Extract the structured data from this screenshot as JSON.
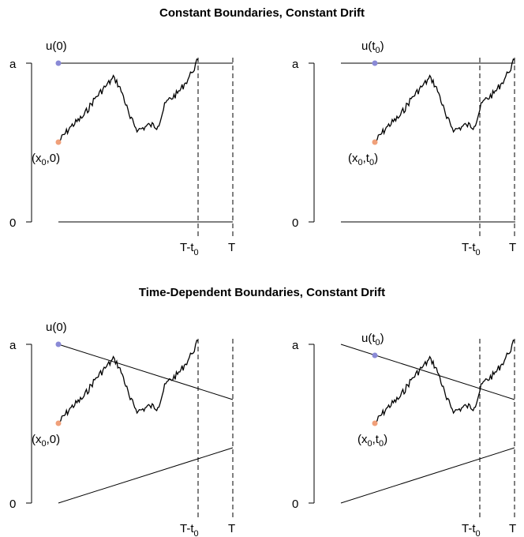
{
  "colors": {
    "start_dot": "#f0a07a",
    "boundary_dot": "#8a8ad6",
    "line": "#000000"
  },
  "sections": [
    {
      "title": "Constant Boundaries, Constant Drift",
      "panels": [
        {
          "boundary_label": "u(0)",
          "start_label": "(x",
          "start_sub": "0",
          "start_tail": ",0)",
          "y_top": "a",
          "y_bottom": "0",
          "t_label_main": "T-t",
          "t_label_sub": "0",
          "t_end_label": "T"
        },
        {
          "boundary_label": "u(t",
          "boundary_sub": "0",
          "boundary_tail": ")",
          "start_label": "(x",
          "start_sub": "0",
          "start_tail": ",t",
          "start_sub2": "0",
          "start_tail2": ")",
          "y_top": "a",
          "y_bottom": "0",
          "t_label_main": "T-t",
          "t_label_sub": "0",
          "t_end_label": "T"
        }
      ]
    },
    {
      "title": "Time-Dependent Boundaries, Constant Drift",
      "panels": [
        {
          "boundary_label": "u(0)",
          "start_label": "(x",
          "start_sub": "0",
          "start_tail": ",0)",
          "y_top": "a",
          "y_bottom": "0",
          "t_label_main": "T-t",
          "t_label_sub": "0",
          "t_end_label": "T"
        },
        {
          "boundary_label": "u(t",
          "boundary_sub": "0",
          "boundary_tail": ")",
          "start_label": "(x",
          "start_sub": "0",
          "start_tail": ",t",
          "start_sub2": "0",
          "start_tail2": ")",
          "y_top": "a",
          "y_bottom": "0",
          "t_label_main": "T-t",
          "t_label_sub": "0",
          "t_end_label": "T"
        }
      ]
    }
  ]
}
